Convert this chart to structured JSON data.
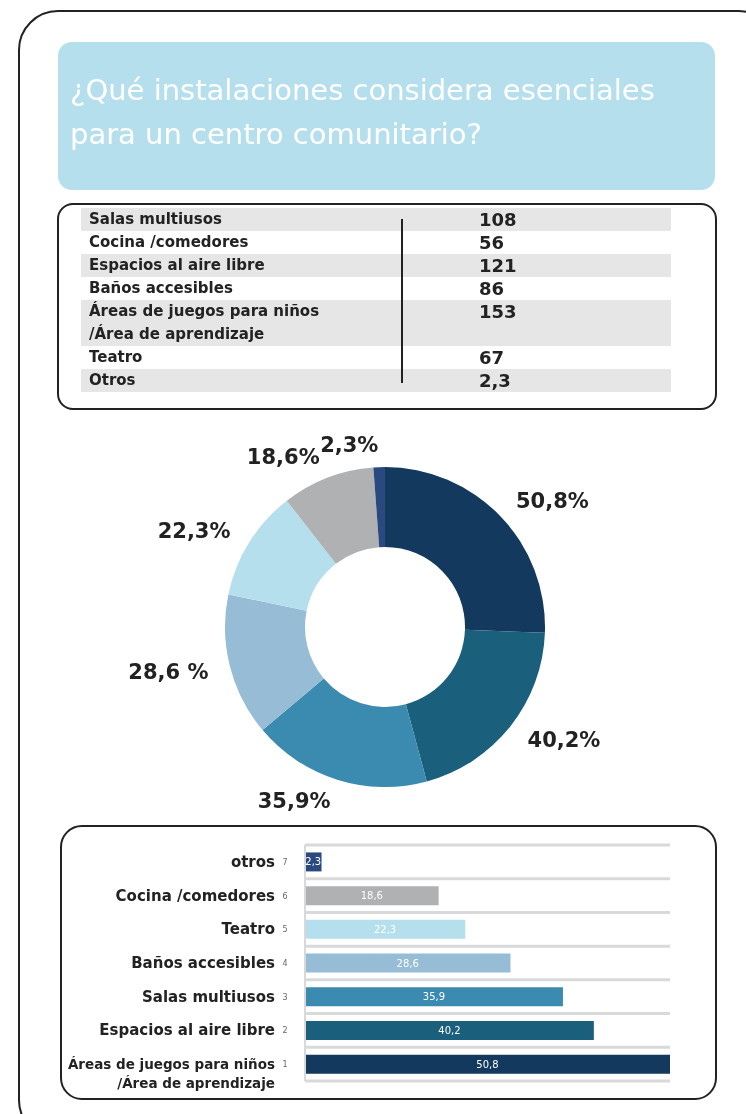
{
  "chart_data": [
    {
      "type": "other",
      "title": "¿Qué instalaciones considera esenciales para un centro comunitario?",
      "categories": [
        "Salas multiusos",
        "Cocina /comedores",
        "Espacios al aire libre",
        "Baños accesibles",
        "Áreas de juegos para niños\n/Área de aprendizaje",
        "Teatro",
        "Otros"
      ],
      "values": [
        108,
        56,
        121,
        86,
        153,
        67,
        2.3
      ],
      "value_labels": [
        "108",
        "56",
        "121",
        "86",
        "153",
        "67",
        "2,3"
      ]
    },
    {
      "type": "donut",
      "categories": [
        null,
        null,
        null,
        null,
        null,
        null,
        null
      ],
      "values": [
        50.8,
        40.2,
        35.9,
        28.6,
        22.3,
        18.6,
        2.3
      ],
      "value_labels": [
        "50,8%",
        "40,2%",
        "35,9%",
        "28,6 %",
        "22,3%",
        "18,6%",
        "2,3%"
      ],
      "colors": [
        "#133a5e",
        "#1a5f7c",
        "#3b8ab0",
        "#96bcd6",
        "#b6dfed",
        "#b0b1b3",
        "#2a4a7f"
      ]
    },
    {
      "type": "bar",
      "orientation": "horizontal",
      "categories": [
        "otros",
        "Cocina /comedores",
        "Teatro",
        "Baños accesibles",
        "Salas multiusos",
        "Espacios al aire libre",
        "Áreas de juegos para niños\n/Área de aprendizaje"
      ],
      "values": [
        2.3,
        18.6,
        22.3,
        28.6,
        35.9,
        40.2,
        50.8
      ],
      "colors": [
        "#2a4a7f",
        "#b0b1b3",
        "#b6dfed",
        "#96bcd6",
        "#3b8ab0",
        "#1a5f7c",
        "#133a5e"
      ],
      "annotations": [
        "7",
        "6",
        "5",
        "4",
        "3",
        "2",
        "1"
      ],
      "value_labels": [
        "2,3",
        "18,6",
        "22,3",
        "28,6",
        "35,9",
        "40,2",
        "50,8"
      ],
      "grid": "y"
    }
  ]
}
